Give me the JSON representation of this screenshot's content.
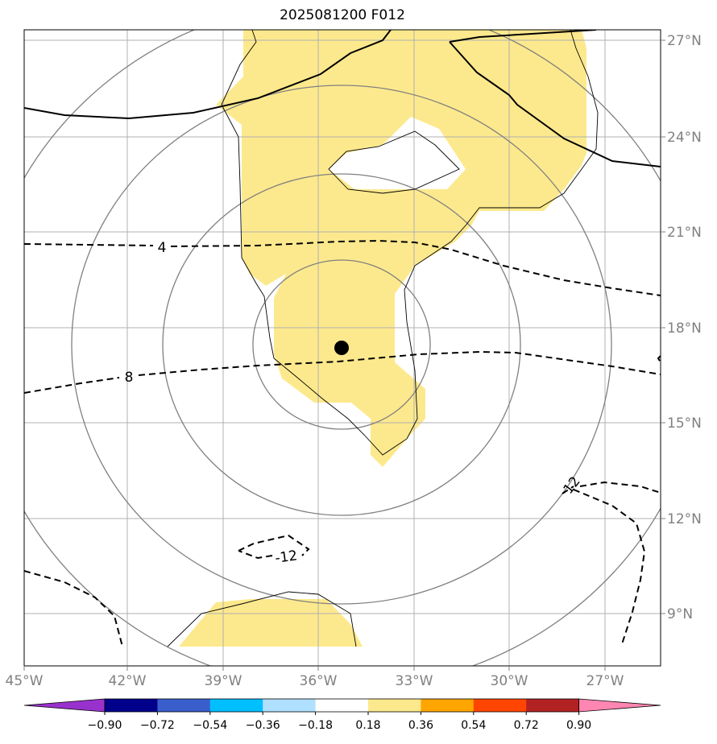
{
  "title": "2025081200 F012",
  "map": {
    "lon_range": [
      -45,
      -25
    ],
    "lat_range": [
      7.5,
      27.5
    ],
    "x_ticks": [
      "45°W",
      "42°W",
      "39°W",
      "36°W",
      "33°W",
      "30°W",
      "27°W"
    ],
    "y_ticks": [
      "27°N",
      "24°N",
      "21°N",
      "18°N",
      "15°N",
      "12°N",
      "9°N"
    ],
    "center_marker": {
      "lon": -35.7,
      "lat": 17.4
    },
    "contour_labels": [
      "4",
      "8",
      "12",
      "-12"
    ],
    "shading_color": "#fde98d",
    "contour_color": "#000000",
    "circle_color": "#808080",
    "grid_color": "#b0b0b0"
  },
  "colorbar": {
    "ticks": [
      "−0.90",
      "−0.72",
      "−0.54",
      "−0.36",
      "−0.18",
      "0.18",
      "0.36",
      "0.54",
      "0.72",
      "0.90"
    ],
    "colors": [
      "#9932cc",
      "#00008b",
      "#3a5fcd",
      "#00bfff",
      "#b0e0ff",
      "#ffffff",
      "#fde98d",
      "#ffa500",
      "#ff4500",
      "#b22222",
      "#ff86b0"
    ]
  }
}
